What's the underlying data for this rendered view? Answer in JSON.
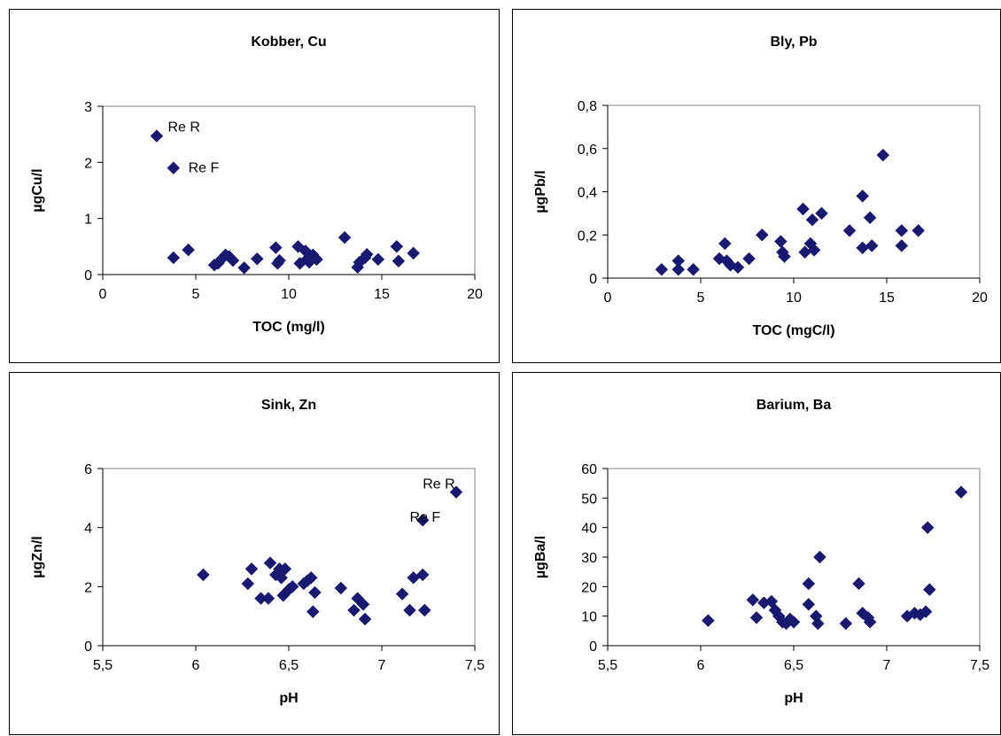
{
  "chart_data": [
    {
      "type": "scatter",
      "title": "Kobber, Cu",
      "xlabel": "TOC (mg/l)",
      "ylabel": "µgCu/l",
      "xlim": [
        0,
        20
      ],
      "ylim": [
        0,
        3
      ],
      "xticks": [
        "0",
        "5",
        "10",
        "15",
        "20"
      ],
      "yticks": [
        "0",
        "1",
        "2",
        "3"
      ],
      "marker_color": "#191970",
      "points": [
        {
          "x": 2.9,
          "y": 2.47
        },
        {
          "x": 3.8,
          "y": 1.9
        },
        {
          "x": 3.8,
          "y": 0.3
        },
        {
          "x": 4.6,
          "y": 0.44
        },
        {
          "x": 6.0,
          "y": 0.17
        },
        {
          "x": 6.2,
          "y": 0.2
        },
        {
          "x": 6.4,
          "y": 0.28
        },
        {
          "x": 6.6,
          "y": 0.35
        },
        {
          "x": 6.8,
          "y": 0.32
        },
        {
          "x": 7.0,
          "y": 0.25
        },
        {
          "x": 7.6,
          "y": 0.12
        },
        {
          "x": 8.3,
          "y": 0.28
        },
        {
          "x": 9.3,
          "y": 0.48
        },
        {
          "x": 9.4,
          "y": 0.2
        },
        {
          "x": 9.5,
          "y": 0.25
        },
        {
          "x": 10.5,
          "y": 0.5
        },
        {
          "x": 10.6,
          "y": 0.2
        },
        {
          "x": 10.9,
          "y": 0.42
        },
        {
          "x": 11.0,
          "y": 0.28
        },
        {
          "x": 11.1,
          "y": 0.22
        },
        {
          "x": 11.3,
          "y": 0.35
        },
        {
          "x": 11.5,
          "y": 0.27
        },
        {
          "x": 13.0,
          "y": 0.66
        },
        {
          "x": 13.7,
          "y": 0.13
        },
        {
          "x": 13.8,
          "y": 0.22
        },
        {
          "x": 14.1,
          "y": 0.3
        },
        {
          "x": 14.2,
          "y": 0.36
        },
        {
          "x": 14.8,
          "y": 0.27
        },
        {
          "x": 15.8,
          "y": 0.5
        },
        {
          "x": 15.9,
          "y": 0.24
        },
        {
          "x": 16.7,
          "y": 0.38
        }
      ],
      "annotations": [
        {
          "text": "Re R",
          "x": 3.5,
          "y": 2.55
        },
        {
          "text": "Re F",
          "x": 4.6,
          "y": 1.82
        }
      ]
    },
    {
      "type": "scatter",
      "title": "Bly, Pb",
      "xlabel": "TOC (mgC/l)",
      "ylabel": "µgPb/l",
      "xlim": [
        0,
        20
      ],
      "ylim": [
        0,
        0.8
      ],
      "xticks": [
        "0",
        "5",
        "10",
        "15",
        "20"
      ],
      "yticks": [
        "0",
        "0,2",
        "0,4",
        "0,6",
        "0,8"
      ],
      "marker_color": "#191970",
      "points": [
        {
          "x": 2.9,
          "y": 0.04
        },
        {
          "x": 3.8,
          "y": 0.08
        },
        {
          "x": 3.8,
          "y": 0.04
        },
        {
          "x": 4.6,
          "y": 0.04
        },
        {
          "x": 6.0,
          "y": 0.09
        },
        {
          "x": 6.3,
          "y": 0.16
        },
        {
          "x": 6.4,
          "y": 0.08
        },
        {
          "x": 6.6,
          "y": 0.06
        },
        {
          "x": 7.0,
          "y": 0.05
        },
        {
          "x": 7.6,
          "y": 0.09
        },
        {
          "x": 8.3,
          "y": 0.2
        },
        {
          "x": 9.3,
          "y": 0.17
        },
        {
          "x": 9.4,
          "y": 0.12
        },
        {
          "x": 9.5,
          "y": 0.1
        },
        {
          "x": 10.5,
          "y": 0.32
        },
        {
          "x": 10.6,
          "y": 0.12
        },
        {
          "x": 10.9,
          "y": 0.16
        },
        {
          "x": 11.0,
          "y": 0.27
        },
        {
          "x": 11.1,
          "y": 0.13
        },
        {
          "x": 11.5,
          "y": 0.3
        },
        {
          "x": 13.0,
          "y": 0.22
        },
        {
          "x": 13.7,
          "y": 0.38
        },
        {
          "x": 13.7,
          "y": 0.14
        },
        {
          "x": 14.1,
          "y": 0.28
        },
        {
          "x": 14.2,
          "y": 0.15
        },
        {
          "x": 14.8,
          "y": 0.57
        },
        {
          "x": 15.8,
          "y": 0.22
        },
        {
          "x": 15.8,
          "y": 0.15
        },
        {
          "x": 16.7,
          "y": 0.22
        }
      ],
      "annotations": []
    },
    {
      "type": "scatter",
      "title": "Sink, Zn",
      "xlabel": "pH",
      "ylabel": "µgZn/l",
      "xlim": [
        5.5,
        7.5
      ],
      "ylim": [
        0,
        6
      ],
      "xticks": [
        "5,5",
        "6",
        "6,5",
        "7",
        "7,5"
      ],
      "yticks": [
        "0",
        "2",
        "4",
        "6"
      ],
      "marker_color": "#191970",
      "points": [
        {
          "x": 6.04,
          "y": 2.4
        },
        {
          "x": 6.28,
          "y": 2.1
        },
        {
          "x": 6.3,
          "y": 2.6
        },
        {
          "x": 6.35,
          "y": 1.6
        },
        {
          "x": 6.39,
          "y": 1.6
        },
        {
          "x": 6.4,
          "y": 2.8
        },
        {
          "x": 6.43,
          "y": 2.4
        },
        {
          "x": 6.45,
          "y": 2.6
        },
        {
          "x": 6.46,
          "y": 2.3
        },
        {
          "x": 6.47,
          "y": 1.7
        },
        {
          "x": 6.48,
          "y": 2.6
        },
        {
          "x": 6.5,
          "y": 1.9
        },
        {
          "x": 6.52,
          "y": 2.0
        },
        {
          "x": 6.58,
          "y": 2.1
        },
        {
          "x": 6.6,
          "y": 2.2
        },
        {
          "x": 6.62,
          "y": 2.3
        },
        {
          "x": 6.63,
          "y": 1.15
        },
        {
          "x": 6.64,
          "y": 1.8
        },
        {
          "x": 6.78,
          "y": 1.95
        },
        {
          "x": 6.85,
          "y": 1.2
        },
        {
          "x": 6.87,
          "y": 1.6
        },
        {
          "x": 6.9,
          "y": 1.4
        },
        {
          "x": 6.91,
          "y": 0.9
        },
        {
          "x": 7.11,
          "y": 1.75
        },
        {
          "x": 7.15,
          "y": 1.2
        },
        {
          "x": 7.17,
          "y": 2.3
        },
        {
          "x": 7.22,
          "y": 2.4
        },
        {
          "x": 7.23,
          "y": 1.2
        },
        {
          "x": 7.22,
          "y": 4.25
        },
        {
          "x": 7.4,
          "y": 5.2
        }
      ],
      "annotations": [
        {
          "text": "Re R",
          "x": 7.22,
          "y": 5.32
        },
        {
          "text": "Re F",
          "x": 7.15,
          "y": 4.2
        }
      ]
    },
    {
      "type": "scatter",
      "title": "Barium, Ba",
      "xlabel": "pH",
      "ylabel": "µgBa/l",
      "xlim": [
        5.5,
        7.5
      ],
      "ylim": [
        0,
        60
      ],
      "xticks": [
        "5,5",
        "6",
        "6,5",
        "7",
        "7,5"
      ],
      "yticks": [
        "0",
        "10",
        "20",
        "30",
        "40",
        "50",
        "60"
      ],
      "marker_color": "#191970",
      "points": [
        {
          "x": 6.04,
          "y": 8.5
        },
        {
          "x": 6.28,
          "y": 15.5
        },
        {
          "x": 6.3,
          "y": 9.5
        },
        {
          "x": 6.34,
          "y": 14.5
        },
        {
          "x": 6.38,
          "y": 15
        },
        {
          "x": 6.4,
          "y": 12
        },
        {
          "x": 6.42,
          "y": 10
        },
        {
          "x": 6.44,
          "y": 8
        },
        {
          "x": 6.46,
          "y": 7.5
        },
        {
          "x": 6.48,
          "y": 9
        },
        {
          "x": 6.5,
          "y": 8
        },
        {
          "x": 6.58,
          "y": 21
        },
        {
          "x": 6.58,
          "y": 14
        },
        {
          "x": 6.62,
          "y": 10
        },
        {
          "x": 6.63,
          "y": 7.5
        },
        {
          "x": 6.64,
          "y": 30
        },
        {
          "x": 6.78,
          "y": 7.5
        },
        {
          "x": 6.85,
          "y": 21
        },
        {
          "x": 6.87,
          "y": 11
        },
        {
          "x": 6.9,
          "y": 9.5
        },
        {
          "x": 6.91,
          "y": 8
        },
        {
          "x": 7.11,
          "y": 10
        },
        {
          "x": 7.15,
          "y": 11
        },
        {
          "x": 7.18,
          "y": 10.5
        },
        {
          "x": 7.21,
          "y": 11.5
        },
        {
          "x": 7.22,
          "y": 40
        },
        {
          "x": 7.23,
          "y": 19
        },
        {
          "x": 7.4,
          "y": 52
        }
      ],
      "annotations": []
    }
  ]
}
